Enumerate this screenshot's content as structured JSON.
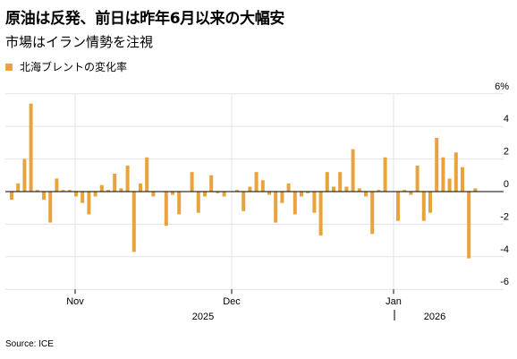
{
  "header": {
    "title": "原油は反発、前日は昨年6月以来の大幅安",
    "subtitle": "市場はイラン情勢を注視"
  },
  "legend": {
    "label": "北海ブレントの変化率"
  },
  "source": "Source: ICE",
  "colors": {
    "bar": "#E8A33D",
    "grid": "#e3e3e3",
    "zero": "#000000"
  },
  "chart_data": {
    "type": "bar",
    "series": [
      {
        "name": "北海ブレントの変化率",
        "values": [
          -0.5,
          0.5,
          2.0,
          5.4,
          0.1,
          -0.5,
          -1.9,
          0.8,
          0.1,
          0.1,
          -0.3,
          -0.7,
          -1.4,
          -0.3,
          0.4,
          0.1,
          1.1,
          0.2,
          1.6,
          -3.7,
          0.5,
          2.1,
          -0.3,
          0.0,
          -2.1,
          -0.2,
          -1.4,
          0.0,
          1.2,
          -1.3,
          -0.3,
          1.0,
          -0.1,
          -0.3,
          0.0,
          0.1,
          -1.2,
          0.3,
          1.2,
          0.7,
          -0.2,
          -1.9,
          -0.7,
          0.5,
          -1.4,
          -0.3,
          -0.1,
          -1.3,
          -2.7,
          1.2,
          0.3,
          1.2,
          0.3,
          2.6,
          0.2,
          -0.3,
          -2.6,
          0.1,
          2.1,
          0.0,
          -1.8,
          0.1,
          -0.2,
          1.6,
          -1.8,
          -1.3,
          3.3,
          2.1,
          0.8,
          2.4,
          1.5,
          -4.1,
          0.2
        ]
      }
    ],
    "yticks": [
      6,
      4,
      2,
      0,
      -2,
      -4,
      -6
    ],
    "ytick_labels": [
      "6%",
      "4",
      "2",
      "0",
      "-2",
      "-4",
      "-6"
    ],
    "ylim": [
      -6,
      6
    ],
    "month_labels": [
      "Nov",
      "Dec",
      "Jan"
    ],
    "year_labels": [
      "2025",
      "2026"
    ],
    "grid": true,
    "legend_position": "top-left"
  }
}
